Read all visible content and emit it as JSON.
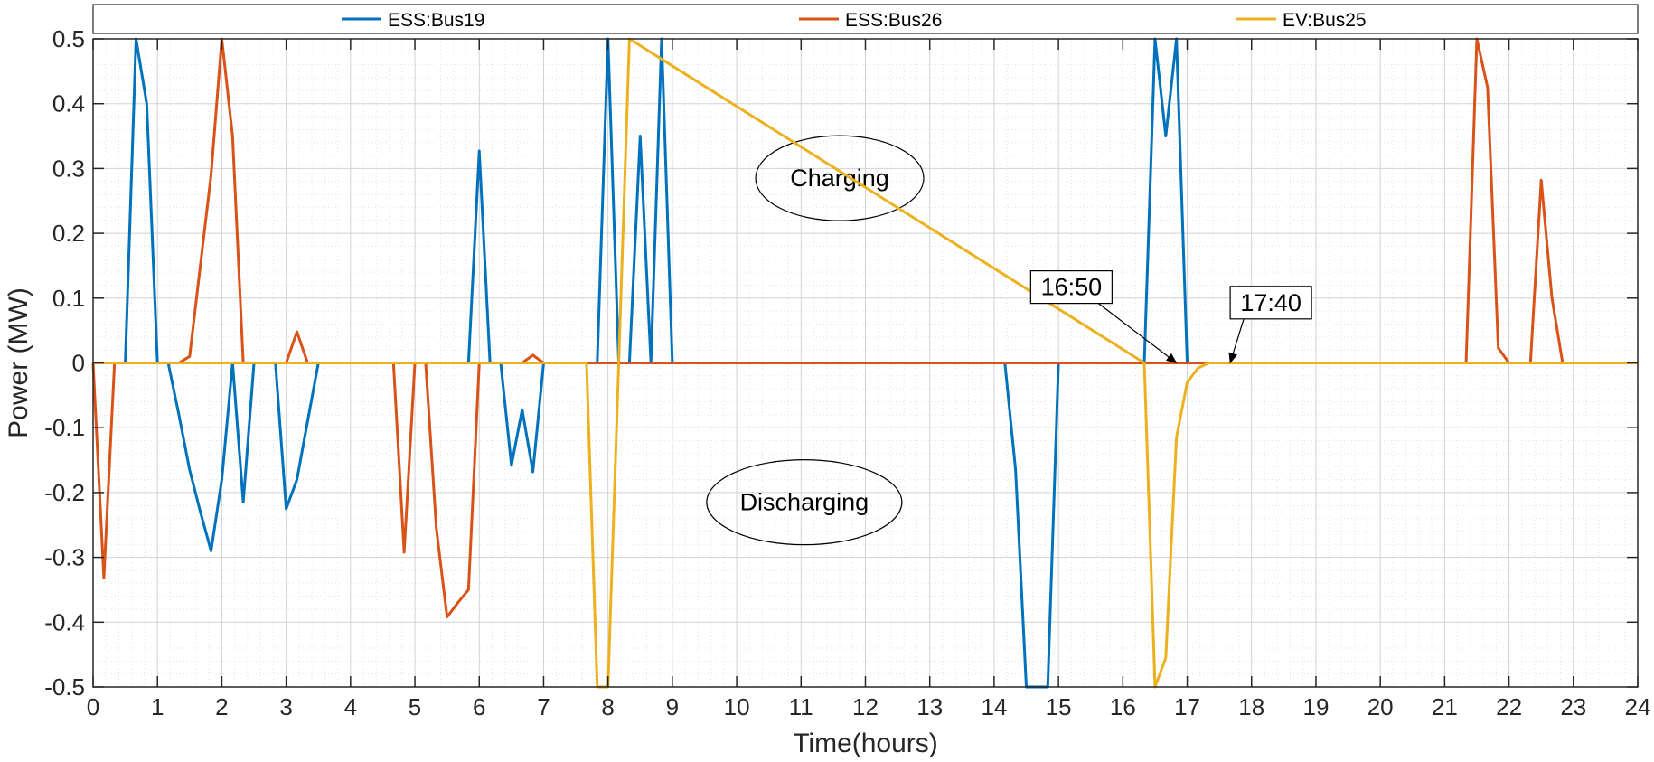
{
  "chart_data": {
    "type": "line",
    "title": "",
    "xlabel": "Time(hours)",
    "ylabel": "Power (MW)",
    "xlim": [
      0,
      24
    ],
    "ylim": [
      -0.5,
      0.5
    ],
    "xticks": [
      0,
      1,
      2,
      3,
      4,
      5,
      6,
      7,
      8,
      9,
      10,
      11,
      12,
      13,
      14,
      15,
      16,
      17,
      18,
      19,
      20,
      21,
      22,
      23,
      24
    ],
    "yticks": [
      -0.5,
      -0.4,
      -0.3,
      -0.2,
      -0.1,
      0,
      0.1,
      0.2,
      0.3,
      0.4,
      0.5
    ],
    "ytick_labels": [
      "-0.5",
      "-0.4",
      "-0.3",
      "-0.2",
      "-0.1",
      "0",
      "0.1",
      "0.2",
      "0.3",
      "0.4",
      "0.5"
    ],
    "grid": true,
    "minor_grid": true,
    "legend_position": "top",
    "series": [
      {
        "name": "ESS:Bus19",
        "color": "#0072BD",
        "x": [
          0,
          0.5,
          0.667,
          0.833,
          1,
          1.167,
          1.333,
          1.5,
          1.667,
          1.833,
          2,
          2.167,
          2.333,
          2.5,
          2.667,
          2.833,
          3,
          3.167,
          3.333,
          3.5,
          5.833,
          6,
          6.167,
          6.333,
          6.5,
          6.667,
          6.833,
          7,
          7.667,
          7.833,
          8,
          8.167,
          8.333,
          8.5,
          8.667,
          8.833,
          9,
          14.167,
          14.333,
          14.5,
          14.667,
          14.833,
          15,
          16.333,
          16.5,
          16.667,
          16.833,
          17,
          24
        ],
        "y": [
          0,
          0,
          0.5,
          0.4,
          0,
          0,
          -0.08,
          -0.165,
          -0.23,
          -0.29,
          -0.18,
          0,
          -0.215,
          0,
          0,
          0,
          -0.225,
          -0.18,
          -0.09,
          0,
          0,
          0.327,
          0,
          0,
          -0.158,
          -0.072,
          -0.168,
          0,
          0,
          0,
          0.5,
          0,
          0,
          0.35,
          0,
          0.5,
          0,
          0,
          -0.165,
          -0.5,
          -0.5,
          -0.5,
          0,
          0,
          0.5,
          0.35,
          0.5,
          0,
          0
        ]
      },
      {
        "name": "ESS:Bus26",
        "color": "#D95319",
        "x": [
          0,
          0.167,
          0.333,
          0.5,
          1.333,
          1.5,
          1.833,
          2,
          2.167,
          2.333,
          3,
          3.167,
          3.333,
          4.667,
          4.833,
          5,
          5.167,
          5.333,
          5.5,
          5.667,
          5.833,
          6,
          6.667,
          6.833,
          7,
          21.333,
          21.5,
          21.667,
          21.833,
          22,
          22.333,
          22.5,
          22.667,
          22.833,
          24
        ],
        "y": [
          0,
          -0.332,
          0,
          0,
          0,
          0.01,
          0.29,
          0.5,
          0.35,
          0,
          0,
          0.048,
          0,
          0,
          -0.292,
          0,
          0,
          -0.255,
          -0.392,
          -0.37,
          -0.35,
          0,
          0,
          0.012,
          0,
          0,
          0.5,
          0.425,
          0.023,
          0,
          0,
          0.282,
          0.1,
          0,
          0
        ]
      },
      {
        "name": "EV:Bus25",
        "color": "#EDB120",
        "x": [
          0,
          7.667,
          7.833,
          8,
          8.167,
          8.333,
          16.333,
          16.5,
          16.667,
          16.833,
          17,
          17.167,
          17.333,
          17.5,
          17.667,
          24
        ],
        "y": [
          0,
          0,
          -0.5,
          -0.5,
          0,
          0.5,
          0,
          -0.5,
          -0.455,
          -0.115,
          -0.03,
          -0.008,
          0,
          0,
          0,
          0
        ]
      }
    ],
    "annotations": [
      {
        "text": "Charging",
        "shape": "ellipse",
        "at": [
          11.6,
          0.285
        ]
      },
      {
        "text": "Discharging",
        "shape": "ellipse",
        "at": [
          11.05,
          -0.215
        ]
      },
      {
        "text": "16:50",
        "shape": "box-arrow",
        "at": [
          15.2,
          0.117
        ],
        "points_to": [
          16.833,
          0
        ]
      },
      {
        "text": "17:40",
        "shape": "box-arrow",
        "at": [
          18.3,
          0.093
        ],
        "points_to": [
          17.667,
          0
        ]
      }
    ]
  }
}
